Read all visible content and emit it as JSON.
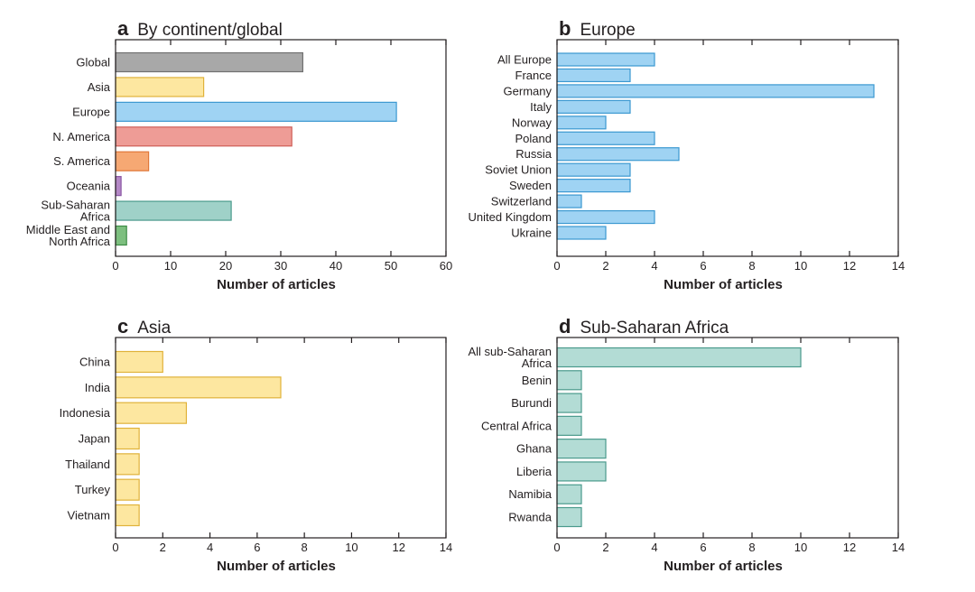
{
  "chart_data": [
    {
      "letter": "a",
      "title": "By continent/global",
      "type": "bar",
      "orientation": "horizontal",
      "xlabel": "Number of articles",
      "xlim": [
        0,
        60
      ],
      "xticks": [
        "0",
        "10",
        "20",
        "30",
        "40",
        "50",
        "60"
      ],
      "categories": [
        [
          "Global"
        ],
        [
          "Asia"
        ],
        [
          "Europe"
        ],
        [
          "N. America"
        ],
        [
          "S. America"
        ],
        [
          "Oceania"
        ],
        [
          "Sub-Saharan",
          "Africa"
        ],
        [
          "Middle East and",
          "North Africa"
        ]
      ],
      "values": [
        34,
        16,
        51,
        32,
        6,
        1,
        21,
        2
      ],
      "colors": [
        "#a8a8a8",
        "#fde7a0",
        "#9fd3f3",
        "#ee9c96",
        "#f6a873",
        "#b488c6",
        "#9fd1c8",
        "#7dbf7f"
      ],
      "border_colors": [
        "#707070",
        "#e0b23a",
        "#3b98d0",
        "#cf5e57",
        "#e0783a",
        "#8a56a4",
        "#4a9a8c",
        "#3d8c45"
      ]
    },
    {
      "letter": "b",
      "title": "Europe",
      "type": "bar",
      "orientation": "horizontal",
      "xlabel": "Number of articles",
      "xlim": [
        0,
        14
      ],
      "xticks": [
        "0",
        "2",
        "4",
        "6",
        "8",
        "10",
        "12",
        "14"
      ],
      "categories": [
        [
          "All Europe"
        ],
        [
          "France"
        ],
        [
          "Germany"
        ],
        [
          "Italy"
        ],
        [
          "Norway"
        ],
        [
          "Poland"
        ],
        [
          "Russia"
        ],
        [
          "Soviet Union"
        ],
        [
          "Sweden"
        ],
        [
          "Switzerland"
        ],
        [
          "United Kingdom"
        ],
        [
          "Ukraine"
        ]
      ],
      "values": [
        4,
        3,
        13,
        3,
        2,
        4,
        5,
        3,
        3,
        1,
        4,
        2
      ],
      "color": "#9fd3f3",
      "border_color": "#3b98d0"
    },
    {
      "letter": "c",
      "title": "Asia",
      "type": "bar",
      "orientation": "horizontal",
      "xlabel": "Number of articles",
      "xlim": [
        0,
        14
      ],
      "xticks": [
        "0",
        "2",
        "4",
        "6",
        "8",
        "10",
        "12",
        "14"
      ],
      "categories": [
        [
          "China"
        ],
        [
          "India"
        ],
        [
          "Indonesia"
        ],
        [
          "Japan"
        ],
        [
          "Thailand"
        ],
        [
          "Turkey"
        ],
        [
          "Vietnam"
        ]
      ],
      "values": [
        2,
        7,
        3,
        1,
        1,
        1,
        1
      ],
      "color": "#fde7a0",
      "border_color": "#e0b23a"
    },
    {
      "letter": "d",
      "title": "Sub-Saharan Africa",
      "type": "bar",
      "orientation": "horizontal",
      "xlabel": "Number of articles",
      "xlim": [
        0,
        14
      ],
      "xticks": [
        "0",
        "2",
        "4",
        "6",
        "8",
        "10",
        "12",
        "14"
      ],
      "categories": [
        [
          "All sub-Saharan",
          "Africa"
        ],
        [
          "Benin"
        ],
        [
          "Burundi"
        ],
        [
          "Central Africa"
        ],
        [
          "Ghana"
        ],
        [
          "Liberia"
        ],
        [
          "Namibia"
        ],
        [
          "Rwanda"
        ]
      ],
      "values": [
        10,
        1,
        1,
        1,
        2,
        2,
        1,
        1
      ],
      "color": "#b3dcd5",
      "border_color": "#4a9a8c"
    }
  ]
}
